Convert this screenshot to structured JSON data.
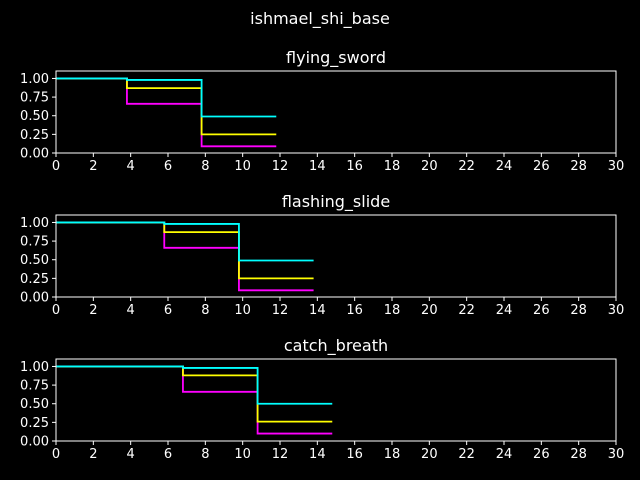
{
  "figure": {
    "title": "ishmael_shi_base",
    "background": "#000000",
    "foreground": "#ffffff"
  },
  "chart_data": [
    {
      "type": "line",
      "step": "post",
      "title": "flying_sword",
      "xlim": [
        0,
        30
      ],
      "ylim": [
        0,
        1.1
      ],
      "xticks": [
        0,
        2,
        4,
        6,
        8,
        10,
        12,
        14,
        16,
        18,
        20,
        22,
        24,
        26,
        28,
        30
      ],
      "yticks": [
        "0.00",
        "0.25",
        "0.50",
        "0.75",
        "1.00"
      ],
      "ytick_values": [
        0,
        0.25,
        0.5,
        0.75,
        1.0
      ],
      "series": [
        {
          "color": "#ff00ff",
          "x": [
            0,
            3.8,
            7.8,
            11.8
          ],
          "y": [
            1.0,
            0.66,
            0.09,
            0.09
          ]
        },
        {
          "color": "#ffff00",
          "x": [
            0,
            3.8,
            7.8,
            11.8
          ],
          "y": [
            1.0,
            0.87,
            0.25,
            0.25
          ]
        },
        {
          "color": "#00ffff",
          "x": [
            0,
            3.8,
            7.8,
            11.8
          ],
          "y": [
            1.0,
            0.98,
            0.49,
            0.49
          ]
        }
      ]
    },
    {
      "type": "line",
      "step": "post",
      "title": "flashing_slide",
      "xlim": [
        0,
        30
      ],
      "ylim": [
        0,
        1.1
      ],
      "xticks": [
        0,
        2,
        4,
        6,
        8,
        10,
        12,
        14,
        16,
        18,
        20,
        22,
        24,
        26,
        28,
        30
      ],
      "yticks": [
        "0.00",
        "0.25",
        "0.50",
        "0.75",
        "1.00"
      ],
      "ytick_values": [
        0,
        0.25,
        0.5,
        0.75,
        1.0
      ],
      "series": [
        {
          "color": "#ff00ff",
          "x": [
            0,
            5.8,
            9.8,
            13.8
          ],
          "y": [
            1.0,
            0.66,
            0.09,
            0.09
          ]
        },
        {
          "color": "#ffff00",
          "x": [
            0,
            5.8,
            9.8,
            13.8
          ],
          "y": [
            1.0,
            0.87,
            0.25,
            0.25
          ]
        },
        {
          "color": "#00ffff",
          "x": [
            0,
            5.8,
            9.8,
            13.8
          ],
          "y": [
            1.0,
            0.98,
            0.49,
            0.49
          ]
        }
      ]
    },
    {
      "type": "line",
      "step": "post",
      "title": "catch_breath",
      "xlim": [
        0,
        30
      ],
      "ylim": [
        0,
        1.1
      ],
      "xticks": [
        0,
        2,
        4,
        6,
        8,
        10,
        12,
        14,
        16,
        18,
        20,
        22,
        24,
        26,
        28,
        30
      ],
      "yticks": [
        "0.00",
        "0.25",
        "0.50",
        "0.75",
        "1.00"
      ],
      "ytick_values": [
        0,
        0.25,
        0.5,
        0.75,
        1.0
      ],
      "series": [
        {
          "color": "#ff00ff",
          "x": [
            0,
            6.8,
            10.8,
            14.8
          ],
          "y": [
            1.0,
            0.66,
            0.1,
            0.1
          ]
        },
        {
          "color": "#ffff00",
          "x": [
            0,
            6.8,
            10.8,
            14.8
          ],
          "y": [
            1.0,
            0.88,
            0.26,
            0.26
          ]
        },
        {
          "color": "#00ffff",
          "x": [
            0,
            6.8,
            10.8,
            14.8
          ],
          "y": [
            1.0,
            0.98,
            0.5,
            0.5
          ]
        }
      ]
    }
  ]
}
